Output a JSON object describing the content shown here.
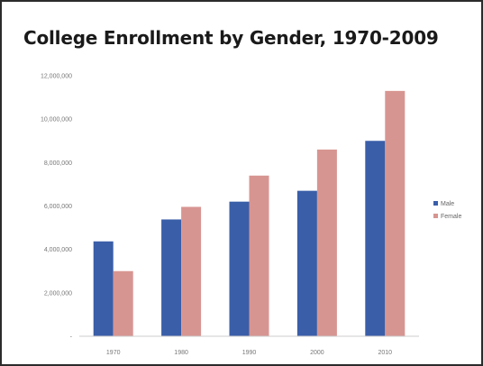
{
  "chart_data": {
    "type": "bar",
    "title": "College Enrollment by Gender, 1970-2009",
    "categories": [
      "1970",
      "1980",
      "1990",
      "2000",
      "2010"
    ],
    "series": [
      {
        "name": "Male",
        "color": "#3a5ea8",
        "values": [
          4370000,
          5380000,
          6200000,
          6700000,
          9000000
        ]
      },
      {
        "name": "Female",
        "color": "#d79591",
        "values": [
          3000000,
          5960000,
          7400000,
          8600000,
          11300000
        ]
      }
    ],
    "ylim": [
      0,
      12000000
    ],
    "yticks": [
      0,
      2000000,
      4000000,
      6000000,
      8000000,
      10000000,
      12000000
    ],
    "ytick_labels": [
      "-",
      "2,000,000",
      "4,000,000",
      "6,000,000",
      "8,000,000",
      "10,000,000",
      "12,000,000"
    ],
    "xlabel": "",
    "ylabel": "",
    "grid": false,
    "legend_position": "right"
  }
}
